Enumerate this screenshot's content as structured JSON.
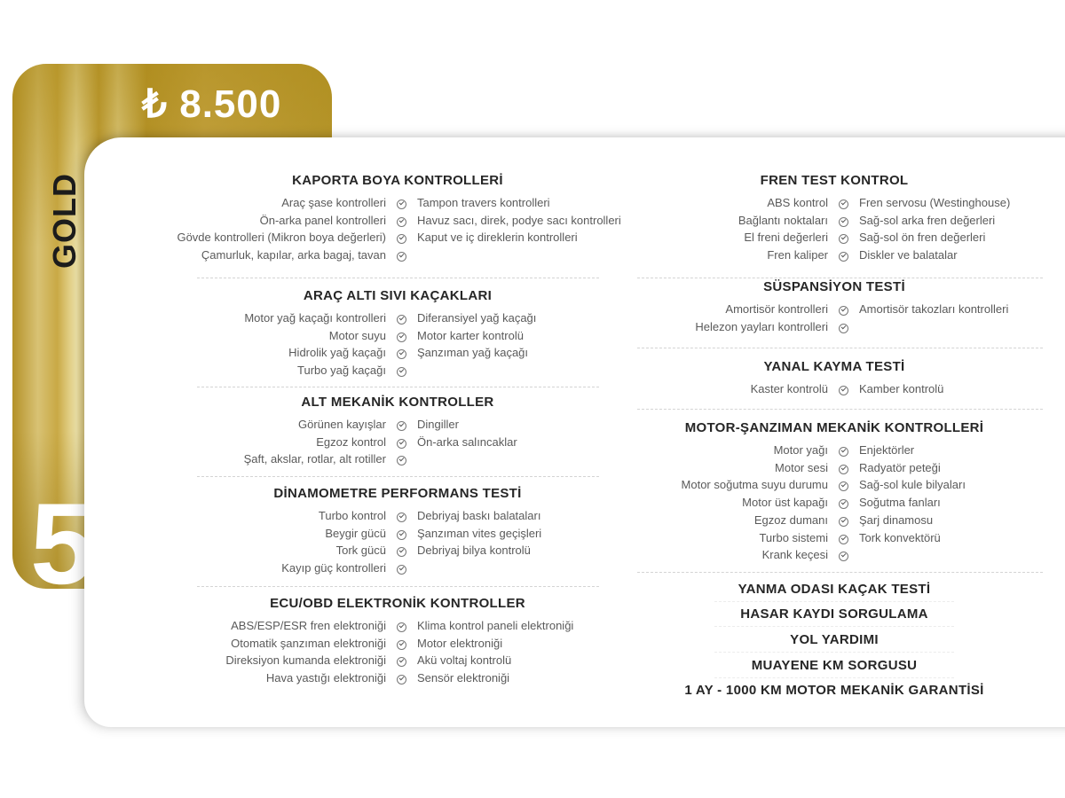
{
  "package": {
    "price": "₺ 8.500",
    "name": "GOLD",
    "number": "5",
    "accent_color": "#c9a945"
  },
  "left_column": [
    {
      "title": "KAPORTA BOYA KONTROLLERİ",
      "rows": [
        [
          "Araç şase kontrolleri",
          "Tampon travers kontrolleri"
        ],
        [
          "Ön-arka panel kontrolleri",
          "Havuz sacı, direk, podye sacı kontrolleri"
        ],
        [
          "Gövde kontrolleri  (Mikron boya değerleri)",
          "Kaput ve iç direklerin kontrolleri"
        ],
        [
          "Çamurluk, kapılar, arka bagaj, tavan",
          ""
        ]
      ]
    },
    {
      "title": "ARAÇ ALTI SIVI KAÇAKLARI",
      "rows": [
        [
          "Motor yağ kaçağı kontrolleri",
          "Diferansiyel yağ kaçağı"
        ],
        [
          "Motor suyu",
          "Motor karter kontrolü"
        ],
        [
          "Hidrolik yağ kaçağı",
          "Şanzıman yağ kaçağı"
        ],
        [
          "Turbo yağ kaçağı",
          ""
        ]
      ]
    },
    {
      "title": "ALT MEKANİK KONTROLLER",
      "rows": [
        [
          "Görünen kayışlar",
          "Dingiller"
        ],
        [
          "Egzoz kontrol",
          "Ön-arka salıncaklar"
        ],
        [
          "Şaft, akslar, rotlar, alt rotiller",
          ""
        ]
      ]
    },
    {
      "title": "DİNAMOMETRE PERFORMANS TESTİ",
      "rows": [
        [
          "Turbo kontrol",
          "Debriyaj baskı balataları"
        ],
        [
          "Beygir gücü",
          "Şanzıman vites geçişleri"
        ],
        [
          "Tork gücü",
          "Debriyaj bilya kontrolü"
        ],
        [
          "Kayıp güç kontrolleri",
          ""
        ]
      ]
    },
    {
      "title": "ECU/OBD ELEKTRONİK KONTROLLER",
      "rows": [
        [
          "ABS/ESP/ESR fren elektroniği",
          "Klima kontrol paneli elektroniği"
        ],
        [
          "Otomatik şanzıman elektroniği",
          "Motor elektroniği"
        ],
        [
          "Direksiyon kumanda elektroniği",
          "Akü voltaj kontrolü"
        ],
        [
          "Hava yastığı elektroniği",
          "Sensör elektroniği"
        ]
      ]
    }
  ],
  "right_column": [
    {
      "title": "FREN TEST KONTROL",
      "rows": [
        [
          "ABS kontrol",
          "Fren servosu (Westinghouse)"
        ],
        [
          "Bağlantı noktaları",
          "Sağ-sol arka fren değerleri"
        ],
        [
          "El freni değerleri",
          "Sağ-sol ön fren değerleri"
        ],
        [
          "Fren kaliper",
          "Diskler ve balatalar"
        ]
      ]
    },
    {
      "title": "SÜSPANSİYON TESTİ",
      "rows": [
        [
          "Amortisör kontrolleri",
          "Amortisör takozları kontrolleri"
        ],
        [
          "Helezon yayları kontrolleri",
          ""
        ]
      ]
    },
    {
      "title": "YANAL KAYMA TESTİ",
      "rows": [
        [
          "Kaster kontrolü",
          "Kamber kontrolü"
        ]
      ]
    },
    {
      "title": "MOTOR-ŞANZIMAN MEKANİK KONTROLLERİ",
      "rows": [
        [
          "Motor yağı",
          "Enjektörler"
        ],
        [
          "Motor sesi",
          "Radyatör peteği"
        ],
        [
          "Motor soğutma suyu durumu",
          "Sağ-sol kule bilyaları"
        ],
        [
          "Motor üst kapağı",
          "Soğutma fanları"
        ],
        [
          "Egzoz dumanı",
          "Şarj dinamosu"
        ],
        [
          "Turbo sistemi",
          "Tork konvektörü"
        ],
        [
          "Krank keçesi",
          ""
        ]
      ]
    }
  ],
  "extras": [
    "YANMA ODASI KAÇAK TESTİ",
    "HASAR KAYDI SORGULAMA",
    "YOL YARDIMI",
    "MUAYENE KM SORGUSU",
    "1 AY - 1000 KM MOTOR MEKANİK GARANTİSİ"
  ],
  "icons": {
    "row_marker": "check-circle-icon"
  }
}
